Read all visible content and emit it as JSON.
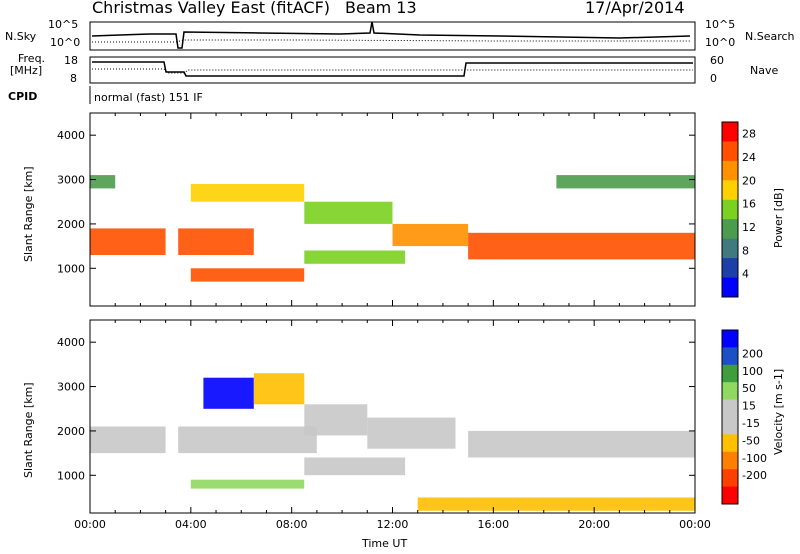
{
  "header": {
    "station": "Christmas Valley East (fitACF)",
    "beam": "Beam 13",
    "date": "17/Apr/2014"
  },
  "top_panels": {
    "nsky": {
      "label": "N.Sky",
      "ticks": [
        "10^5",
        "10^0"
      ]
    },
    "nsearch": {
      "label": "N.Search",
      "ticks": [
        "10^5",
        "10^0"
      ]
    },
    "freq": {
      "label_line1": "Freq.",
      "label_line2": "[MHz]",
      "ticks": [
        "18",
        "8"
      ]
    },
    "nave": {
      "label": "Nave",
      "ticks": [
        "60",
        "0"
      ]
    },
    "cpid": {
      "label": "CPID",
      "value": "normal (fast) 151 IF"
    }
  },
  "colors": {
    "power_scale": [
      "#0000ff",
      "#1f3fa8",
      "#3e7a7e",
      "#4d9b4d",
      "#7bd022",
      "#ffd000",
      "#ff9000",
      "#ff5000",
      "#ff0000"
    ],
    "velocity_scale": [
      "#0000ff",
      "#1f4fc8",
      "#3e9e3e",
      "#90d860",
      "#c8c8c8",
      "#c8c8c8",
      "#ffc000",
      "#ff8000",
      "#ff4000",
      "#ff0000"
    ]
  },
  "chart_data": [
    {
      "type": "heatmap",
      "title": "Power",
      "xlabel": "Time UT",
      "ylabel": "Slant Range [km]",
      "xlim": [
        0,
        24
      ],
      "ylim": [
        150,
        4500
      ],
      "x_ticks": [
        "00:00",
        "04:00",
        "08:00",
        "12:00",
        "16:00",
        "20:00",
        "00:00"
      ],
      "y_ticks": [
        1000,
        2000,
        3000,
        4000
      ],
      "colorbar": {
        "label": "Power [dB]",
        "ticks": [
          4,
          8,
          12,
          16,
          20,
          24,
          28
        ],
        "range": [
          0,
          30
        ]
      },
      "bands": [
        {
          "range_km": [
            1300,
            1900
          ],
          "value": 26,
          "segments": [
            [
              0,
              3.0
            ],
            [
              3.5,
              6.5
            ]
          ]
        },
        {
          "range_km": [
            700,
            1000
          ],
          "value": 24,
          "segments": [
            [
              4.0,
              8.5
            ]
          ]
        },
        {
          "range_km": [
            2500,
            2900
          ],
          "value": 18,
          "segments": [
            [
              4.0,
              8.5
            ]
          ]
        },
        {
          "range_km": [
            1100,
            1400
          ],
          "value": 14,
          "segments": [
            [
              8.5,
              12.5
            ]
          ]
        },
        {
          "range_km": [
            2000,
            2500
          ],
          "value": 16,
          "segments": [
            [
              8.5,
              12.0
            ]
          ]
        },
        {
          "range_km": [
            1500,
            2000
          ],
          "value": 20,
          "segments": [
            [
              12.0,
              15.0
            ]
          ]
        },
        {
          "range_km": [
            1200,
            1800
          ],
          "value": 24,
          "segments": [
            [
              15.0,
              24.0
            ]
          ]
        },
        {
          "range_km": [
            2800,
            3100
          ],
          "value": 10,
          "segments": [
            [
              0,
              1.0
            ],
            [
              18.5,
              24.0
            ]
          ]
        }
      ]
    },
    {
      "type": "heatmap",
      "title": "Velocity",
      "xlabel": "Time UT",
      "ylabel": "Slant Range [km]",
      "xlim": [
        0,
        24
      ],
      "ylim": [
        150,
        4500
      ],
      "x_ticks": [
        "00:00",
        "04:00",
        "08:00",
        "12:00",
        "16:00",
        "20:00",
        "00:00"
      ],
      "y_ticks": [
        1000,
        2000,
        3000,
        4000
      ],
      "colorbar": {
        "label": "Velocity [m s-1]",
        "ticks": [
          200,
          100,
          50,
          15,
          -15,
          -50,
          -100,
          -200
        ],
        "range": [
          -250,
          250
        ]
      },
      "bands": [
        {
          "range_km": [
            1500,
            2100
          ],
          "value": 0,
          "segments": [
            [
              0,
              3.0
            ],
            [
              3.5,
              9.0
            ]
          ]
        },
        {
          "range_km": [
            2500,
            3200
          ],
          "value": 220,
          "segments": [
            [
              4.5,
              6.5
            ]
          ]
        },
        {
          "range_km": [
            2600,
            3300
          ],
          "value": -80,
          "segments": [
            [
              6.5,
              8.5
            ]
          ]
        },
        {
          "range_km": [
            700,
            900
          ],
          "value": 60,
          "segments": [
            [
              4.0,
              8.5
            ]
          ]
        },
        {
          "range_km": [
            1000,
            1400
          ],
          "value": 0,
          "segments": [
            [
              8.5,
              12.5
            ]
          ]
        },
        {
          "range_km": [
            1900,
            2600
          ],
          "value": 0,
          "segments": [
            [
              8.5,
              11.0
            ]
          ]
        },
        {
          "range_km": [
            1600,
            2300
          ],
          "value": 40,
          "segments": [
            [
              11.0,
              14.5
            ]
          ]
        },
        {
          "range_km": [
            1400,
            2000
          ],
          "value": 0,
          "segments": [
            [
              15.0,
              24.0
            ]
          ]
        },
        {
          "range_km": [
            200,
            500
          ],
          "value": -60,
          "segments": [
            [
              13.0,
              24.0
            ]
          ]
        }
      ]
    }
  ]
}
